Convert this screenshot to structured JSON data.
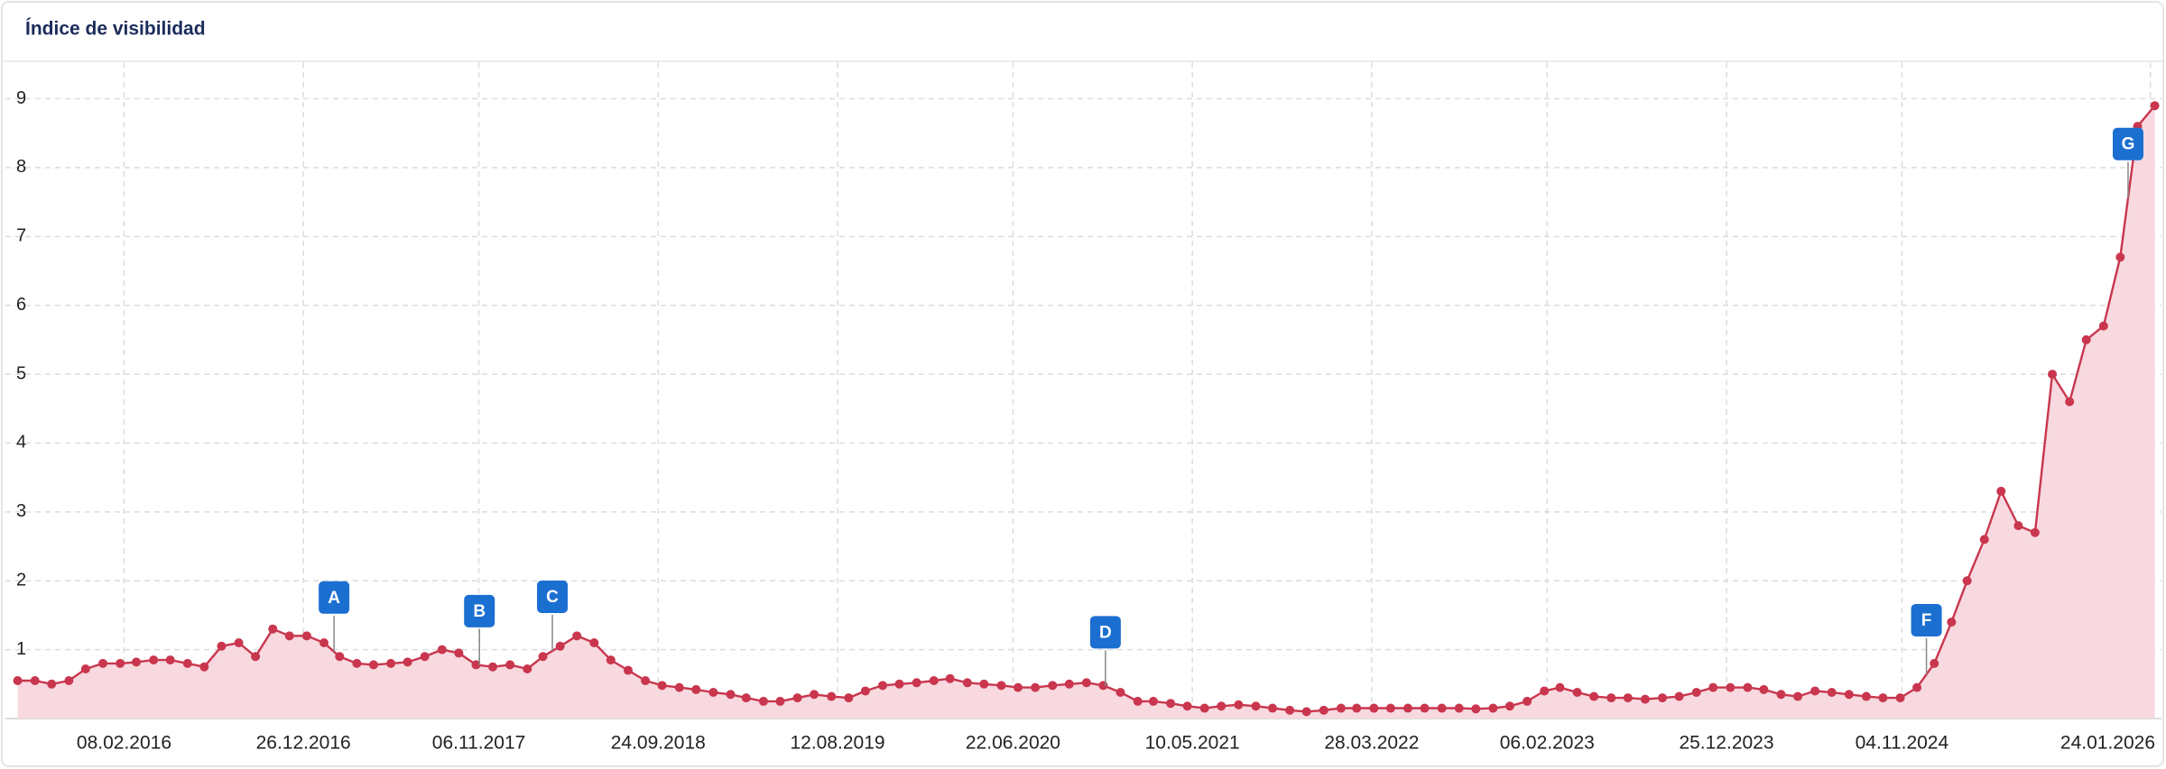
{
  "chart_data": {
    "type": "line",
    "title": "Índice de visibilidad",
    "x": [
      "01.08.2015",
      "01.09.2015",
      "01.10.2015",
      "01.11.2015",
      "01.12.2015",
      "01.01.2016",
      "01.02.2016",
      "01.03.2016",
      "01.04.2016",
      "01.05.2016",
      "01.06.2016",
      "01.07.2016",
      "01.08.2016",
      "01.09.2016",
      "01.10.2016",
      "01.11.2016",
      "01.12.2016",
      "01.01.2017",
      "01.02.2017",
      "01.03.2017",
      "01.04.2017",
      "01.05.2017",
      "01.06.2017",
      "01.07.2017",
      "01.08.2017",
      "01.09.2017",
      "01.10.2017",
      "01.11.2017",
      "01.12.2017",
      "01.01.2018",
      "01.02.2018",
      "01.03.2018",
      "01.04.2018",
      "01.05.2018",
      "01.06.2018",
      "01.07.2018",
      "01.08.2018",
      "01.09.2018",
      "01.10.2018",
      "01.11.2018",
      "01.12.2018",
      "01.01.2019",
      "01.02.2019",
      "01.03.2019",
      "01.04.2019",
      "01.05.2019",
      "01.06.2019",
      "01.07.2019",
      "01.08.2019",
      "01.09.2019",
      "01.10.2019",
      "01.11.2019",
      "01.12.2019",
      "01.01.2020",
      "01.02.2020",
      "01.03.2020",
      "01.04.2020",
      "01.05.2020",
      "01.06.2020",
      "01.07.2020",
      "01.08.2020",
      "01.09.2020",
      "01.10.2020",
      "01.11.2020",
      "01.12.2020",
      "01.01.2021",
      "01.02.2021",
      "01.03.2021",
      "01.04.2021",
      "01.05.2021",
      "01.06.2021",
      "01.07.2021",
      "01.08.2021",
      "01.09.2021",
      "01.10.2021",
      "01.11.2021",
      "01.12.2021",
      "01.01.2022",
      "01.02.2022",
      "01.03.2022",
      "01.04.2022",
      "01.05.2022",
      "01.06.2022",
      "01.07.2022",
      "01.08.2022",
      "01.09.2022",
      "01.10.2022",
      "01.11.2022",
      "01.12.2022",
      "01.01.2023",
      "01.02.2023",
      "01.03.2023",
      "01.04.2023",
      "01.05.2023",
      "01.06.2023",
      "01.07.2023",
      "01.08.2023",
      "01.09.2023",
      "01.10.2023",
      "01.11.2023",
      "01.12.2023",
      "01.01.2024",
      "01.02.2024",
      "01.03.2024",
      "01.04.2024",
      "01.05.2024",
      "01.06.2024",
      "01.07.2024",
      "01.08.2024",
      "01.09.2024",
      "01.10.2024",
      "01.11.2024",
      "01.12.2024",
      "01.01.2025",
      "01.02.2025",
      "01.03.2025",
      "01.04.2025",
      "01.05.2025",
      "01.06.2025",
      "01.07.2025",
      "01.08.2025",
      "01.09.2025",
      "01.10.2025",
      "01.11.2025",
      "01.12.2025",
      "01.01.2026",
      "01.02.2026"
    ],
    "values": [
      0.55,
      0.55,
      0.5,
      0.55,
      0.72,
      0.8,
      0.8,
      0.82,
      0.85,
      0.85,
      0.8,
      0.75,
      1.05,
      1.1,
      0.9,
      1.3,
      1.2,
      1.2,
      1.1,
      0.9,
      0.8,
      0.78,
      0.8,
      0.82,
      0.9,
      1.0,
      0.95,
      0.78,
      0.75,
      0.78,
      0.72,
      0.9,
      1.05,
      1.2,
      1.1,
      0.85,
      0.7,
      0.55,
      0.48,
      0.45,
      0.42,
      0.38,
      0.35,
      0.3,
      0.25,
      0.25,
      0.3,
      0.35,
      0.32,
      0.3,
      0.4,
      0.48,
      0.5,
      0.52,
      0.55,
      0.58,
      0.52,
      0.5,
      0.48,
      0.45,
      0.45,
      0.48,
      0.5,
      0.52,
      0.48,
      0.38,
      0.25,
      0.25,
      0.22,
      0.18,
      0.15,
      0.18,
      0.2,
      0.18,
      0.15,
      0.12,
      0.1,
      0.12,
      0.15,
      0.15,
      0.15,
      0.15,
      0.15,
      0.15,
      0.15,
      0.15,
      0.14,
      0.15,
      0.18,
      0.25,
      0.4,
      0.45,
      0.38,
      0.32,
      0.3,
      0.3,
      0.28,
      0.3,
      0.32,
      0.38,
      0.45,
      0.45,
      0.45,
      0.42,
      0.35,
      0.32,
      0.4,
      0.38,
      0.35,
      0.32,
      0.3,
      0.3,
      0.45,
      0.8,
      1.4,
      2.0,
      2.6,
      3.3,
      2.8,
      2.7,
      5.0,
      4.6,
      5.5,
      5.7,
      6.7,
      8.6,
      8.9
    ],
    "color": "#c9364e",
    "area_color": "#f7d9df",
    "xlim": [
      "10.07.2015",
      "13.02.2026"
    ],
    "xticks": [
      "08.02.2016",
      "26.12.2016",
      "06.11.2017",
      "24.09.2018",
      "12.08.2019",
      "22.06.2020",
      "10.05.2021",
      "28.03.2022",
      "06.02.2023",
      "25.12.2023",
      "04.11.2024",
      "24.01.2026"
    ],
    "ylim": [
      0,
      9.4
    ],
    "yticks": [
      1,
      2,
      3,
      4,
      5,
      6,
      7,
      8,
      9
    ],
    "grid": true,
    "annotations": [
      {
        "label": "A",
        "x": "19.02.2017"
      },
      {
        "label": "B",
        "x": "07.11.2017"
      },
      {
        "label": "C",
        "x": "18.03.2018"
      },
      {
        "label": "D",
        "x": "05.12.2020"
      },
      {
        "label": "F",
        "x": "18.12.2024"
      },
      {
        "label": "G",
        "x": "15.12.2025"
      }
    ],
    "annotation_color": "#1b6fd0"
  }
}
